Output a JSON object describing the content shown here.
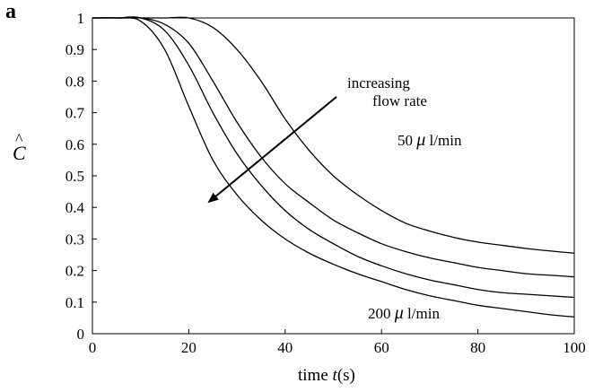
{
  "panel_label": "a",
  "chart_data": {
    "type": "line",
    "xlabel_parts": [
      "time ",
      "t",
      "(s)"
    ],
    "ylabel": "C",
    "ylabel_accent": "^",
    "xlim": [
      0,
      100
    ],
    "ylim": [
      0,
      1
    ],
    "x_ticks": [
      "0",
      "20",
      "40",
      "60",
      "80",
      "100"
    ],
    "y_ticks": [
      "0",
      "0.1",
      "0.2",
      "0.3",
      "0.4",
      "0.5",
      "0.6",
      "0.7",
      "0.8",
      "0.9",
      "1"
    ],
    "grid": false,
    "x": [
      0,
      5,
      10,
      15,
      20,
      25,
      30,
      35,
      40,
      45,
      50,
      55,
      60,
      65,
      70,
      75,
      80,
      85,
      90,
      95,
      100
    ],
    "series": [
      {
        "values": [
          1.0,
          1.0,
          0.99,
          0.9,
          0.72,
          0.55,
          0.44,
          0.36,
          0.3,
          0.255,
          0.22,
          0.19,
          0.165,
          0.14,
          0.12,
          0.105,
          0.09,
          0.08,
          0.07,
          0.06,
          0.053
        ]
      },
      {
        "values": [
          1.0,
          1.0,
          1.0,
          0.96,
          0.85,
          0.7,
          0.57,
          0.47,
          0.39,
          0.33,
          0.285,
          0.245,
          0.215,
          0.19,
          0.17,
          0.155,
          0.14,
          0.13,
          0.125,
          0.12,
          0.115
        ]
      },
      {
        "values": [
          1.0,
          1.0,
          1.0,
          0.98,
          0.92,
          0.8,
          0.67,
          0.56,
          0.475,
          0.415,
          0.36,
          0.32,
          0.285,
          0.26,
          0.24,
          0.225,
          0.21,
          0.2,
          0.19,
          0.185,
          0.18
        ]
      },
      {
        "values": [
          1.0,
          1.0,
          1.0,
          1.0,
          1.0,
          0.97,
          0.9,
          0.8,
          0.68,
          0.58,
          0.5,
          0.44,
          0.39,
          0.35,
          0.325,
          0.305,
          0.29,
          0.28,
          0.27,
          0.262,
          0.255
        ]
      }
    ],
    "annotations": {
      "arrow_text_line1": "increasing",
      "arrow_text_line2": "flow rate",
      "top_label_value": "50 ",
      "bottom_label_value": "200 ",
      "mu": "μ",
      "unit": " l/min"
    }
  }
}
